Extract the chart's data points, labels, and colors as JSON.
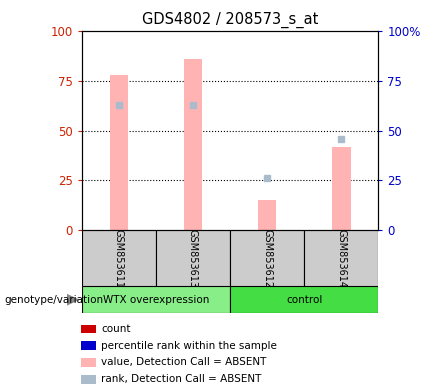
{
  "title": "GDS4802 / 208573_s_at",
  "samples": [
    "GSM853611",
    "GSM853613",
    "GSM853612",
    "GSM853614"
  ],
  "bar_values": [
    78,
    86,
    15,
    42
  ],
  "rank_values": [
    63,
    63,
    26,
    46
  ],
  "bar_color": "#FFB3B3",
  "rank_color": "#AABBCC",
  "left_tick_color": "#CC2200",
  "right_tick_color": "#0000CC",
  "wtx_color": "#88EE88",
  "ctrl_color": "#44DD44",
  "sample_box_color": "#CCCCCC",
  "legend_items": [
    {
      "color": "#CC0000",
      "label": "count"
    },
    {
      "color": "#0000CC",
      "label": "percentile rank within the sample"
    },
    {
      "color": "#FFB3B3",
      "label": "value, Detection Call = ABSENT"
    },
    {
      "color": "#AABBCC",
      "label": "rank, Detection Call = ABSENT"
    }
  ]
}
